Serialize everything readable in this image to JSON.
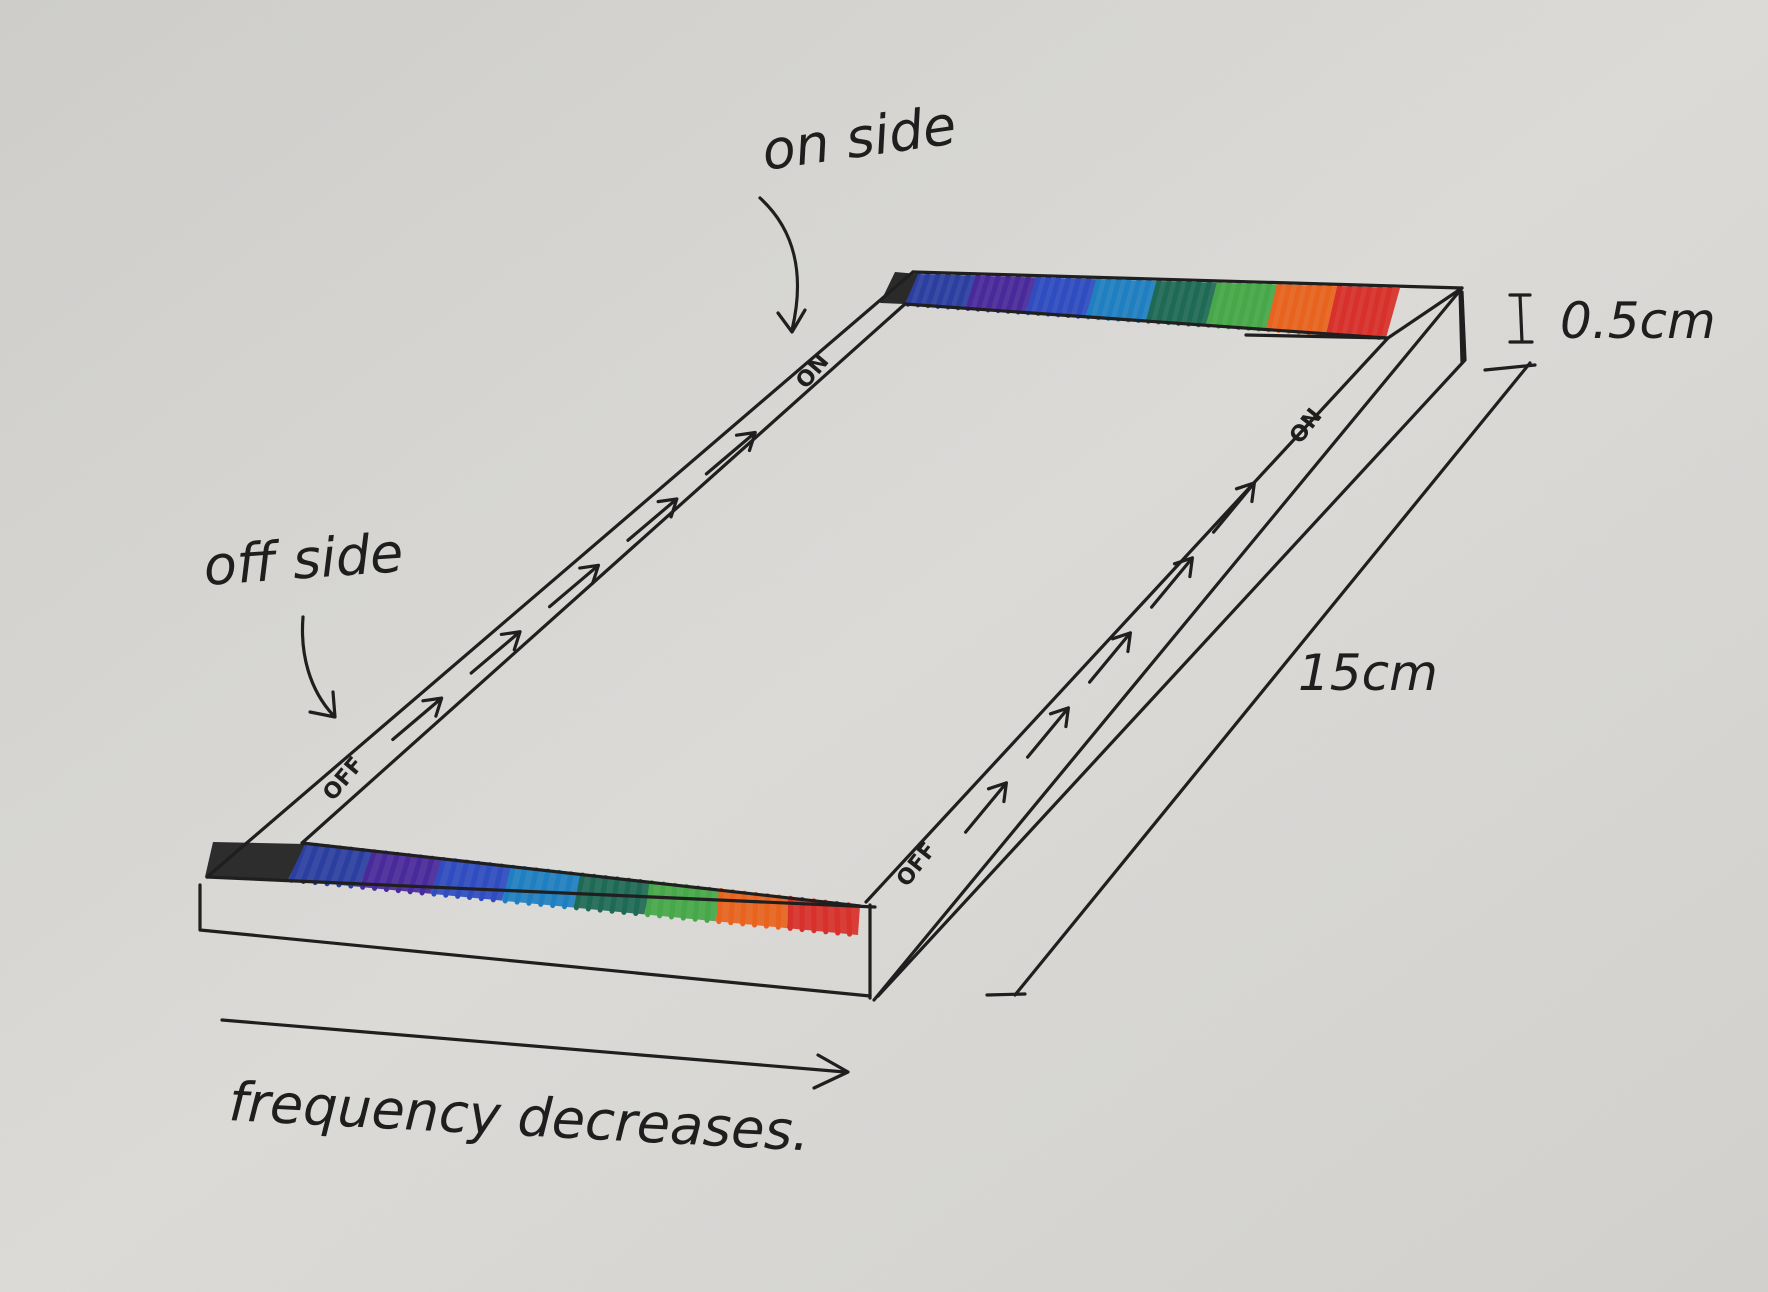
{
  "labels": {
    "on_side": "on side",
    "off_side": "off side",
    "thickness": "0.5cm",
    "length": "15cm",
    "frequency": "frequency decreases.",
    "on_marker": "ON",
    "off_marker": "OFF"
  },
  "colors": {
    "paper": "#d9d8d4",
    "ink": "#1f1f1f",
    "spectrum": [
      "#2b3fa0",
      "#4a2a9a",
      "#2f4cc0",
      "#1f7fc0",
      "#1f6a55",
      "#46a848",
      "#e8641e",
      "#d8302a"
    ]
  },
  "icons": {
    "arrow": "arrow-icon",
    "dimension": "dimension-bracket-icon"
  }
}
